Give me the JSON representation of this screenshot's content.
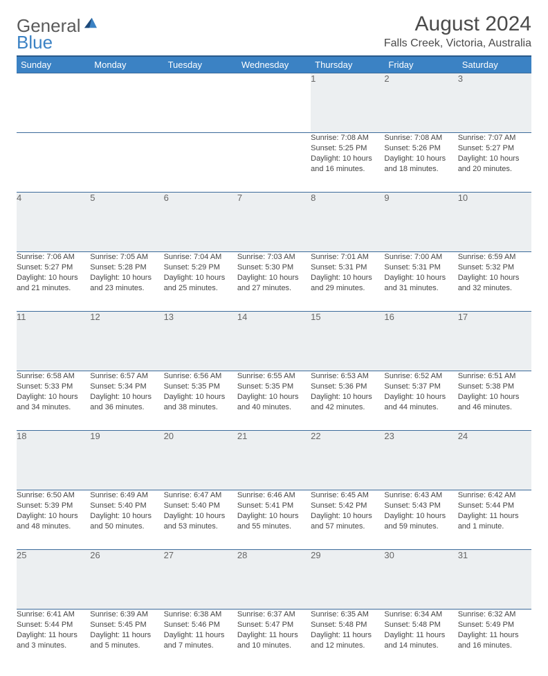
{
  "logo": {
    "general": "General",
    "blue": "Blue"
  },
  "title": {
    "month": "August 2024",
    "location": "Falls Creek, Victoria, Australia"
  },
  "colors": {
    "header_bg": "#3b82c4",
    "header_text": "#ffffff",
    "header_top_border": "#2a5a8a",
    "cell_border": "#3b6a9a",
    "daynum_bg": "#eceff1",
    "daynum_text": "#666666",
    "body_text": "#444444",
    "page_bg": "#ffffff",
    "title_text": "#4a4a4a",
    "logo_gray": "#5a5a5a",
    "logo_blue": "#3b82c4"
  },
  "columns": [
    "Sunday",
    "Monday",
    "Tuesday",
    "Wednesday",
    "Thursday",
    "Friday",
    "Saturday"
  ],
  "weeks": [
    {
      "nums": [
        "",
        "",
        "",
        "",
        "1",
        "2",
        "3"
      ],
      "cells": [
        null,
        null,
        null,
        null,
        {
          "sunrise": "Sunrise: 7:08 AM",
          "sunset": "Sunset: 5:25 PM",
          "daylight1": "Daylight: 10 hours",
          "daylight2": "and 16 minutes."
        },
        {
          "sunrise": "Sunrise: 7:08 AM",
          "sunset": "Sunset: 5:26 PM",
          "daylight1": "Daylight: 10 hours",
          "daylight2": "and 18 minutes."
        },
        {
          "sunrise": "Sunrise: 7:07 AM",
          "sunset": "Sunset: 5:27 PM",
          "daylight1": "Daylight: 10 hours",
          "daylight2": "and 20 minutes."
        }
      ]
    },
    {
      "nums": [
        "4",
        "5",
        "6",
        "7",
        "8",
        "9",
        "10"
      ],
      "cells": [
        {
          "sunrise": "Sunrise: 7:06 AM",
          "sunset": "Sunset: 5:27 PM",
          "daylight1": "Daylight: 10 hours",
          "daylight2": "and 21 minutes."
        },
        {
          "sunrise": "Sunrise: 7:05 AM",
          "sunset": "Sunset: 5:28 PM",
          "daylight1": "Daylight: 10 hours",
          "daylight2": "and 23 minutes."
        },
        {
          "sunrise": "Sunrise: 7:04 AM",
          "sunset": "Sunset: 5:29 PM",
          "daylight1": "Daylight: 10 hours",
          "daylight2": "and 25 minutes."
        },
        {
          "sunrise": "Sunrise: 7:03 AM",
          "sunset": "Sunset: 5:30 PM",
          "daylight1": "Daylight: 10 hours",
          "daylight2": "and 27 minutes."
        },
        {
          "sunrise": "Sunrise: 7:01 AM",
          "sunset": "Sunset: 5:31 PM",
          "daylight1": "Daylight: 10 hours",
          "daylight2": "and 29 minutes."
        },
        {
          "sunrise": "Sunrise: 7:00 AM",
          "sunset": "Sunset: 5:31 PM",
          "daylight1": "Daylight: 10 hours",
          "daylight2": "and 31 minutes."
        },
        {
          "sunrise": "Sunrise: 6:59 AM",
          "sunset": "Sunset: 5:32 PM",
          "daylight1": "Daylight: 10 hours",
          "daylight2": "and 32 minutes."
        }
      ]
    },
    {
      "nums": [
        "11",
        "12",
        "13",
        "14",
        "15",
        "16",
        "17"
      ],
      "cells": [
        {
          "sunrise": "Sunrise: 6:58 AM",
          "sunset": "Sunset: 5:33 PM",
          "daylight1": "Daylight: 10 hours",
          "daylight2": "and 34 minutes."
        },
        {
          "sunrise": "Sunrise: 6:57 AM",
          "sunset": "Sunset: 5:34 PM",
          "daylight1": "Daylight: 10 hours",
          "daylight2": "and 36 minutes."
        },
        {
          "sunrise": "Sunrise: 6:56 AM",
          "sunset": "Sunset: 5:35 PM",
          "daylight1": "Daylight: 10 hours",
          "daylight2": "and 38 minutes."
        },
        {
          "sunrise": "Sunrise: 6:55 AM",
          "sunset": "Sunset: 5:35 PM",
          "daylight1": "Daylight: 10 hours",
          "daylight2": "and 40 minutes."
        },
        {
          "sunrise": "Sunrise: 6:53 AM",
          "sunset": "Sunset: 5:36 PM",
          "daylight1": "Daylight: 10 hours",
          "daylight2": "and 42 minutes."
        },
        {
          "sunrise": "Sunrise: 6:52 AM",
          "sunset": "Sunset: 5:37 PM",
          "daylight1": "Daylight: 10 hours",
          "daylight2": "and 44 minutes."
        },
        {
          "sunrise": "Sunrise: 6:51 AM",
          "sunset": "Sunset: 5:38 PM",
          "daylight1": "Daylight: 10 hours",
          "daylight2": "and 46 minutes."
        }
      ]
    },
    {
      "nums": [
        "18",
        "19",
        "20",
        "21",
        "22",
        "23",
        "24"
      ],
      "cells": [
        {
          "sunrise": "Sunrise: 6:50 AM",
          "sunset": "Sunset: 5:39 PM",
          "daylight1": "Daylight: 10 hours",
          "daylight2": "and 48 minutes."
        },
        {
          "sunrise": "Sunrise: 6:49 AM",
          "sunset": "Sunset: 5:40 PM",
          "daylight1": "Daylight: 10 hours",
          "daylight2": "and 50 minutes."
        },
        {
          "sunrise": "Sunrise: 6:47 AM",
          "sunset": "Sunset: 5:40 PM",
          "daylight1": "Daylight: 10 hours",
          "daylight2": "and 53 minutes."
        },
        {
          "sunrise": "Sunrise: 6:46 AM",
          "sunset": "Sunset: 5:41 PM",
          "daylight1": "Daylight: 10 hours",
          "daylight2": "and 55 minutes."
        },
        {
          "sunrise": "Sunrise: 6:45 AM",
          "sunset": "Sunset: 5:42 PM",
          "daylight1": "Daylight: 10 hours",
          "daylight2": "and 57 minutes."
        },
        {
          "sunrise": "Sunrise: 6:43 AM",
          "sunset": "Sunset: 5:43 PM",
          "daylight1": "Daylight: 10 hours",
          "daylight2": "and 59 minutes."
        },
        {
          "sunrise": "Sunrise: 6:42 AM",
          "sunset": "Sunset: 5:44 PM",
          "daylight1": "Daylight: 11 hours",
          "daylight2": "and 1 minute."
        }
      ]
    },
    {
      "nums": [
        "25",
        "26",
        "27",
        "28",
        "29",
        "30",
        "31"
      ],
      "cells": [
        {
          "sunrise": "Sunrise: 6:41 AM",
          "sunset": "Sunset: 5:44 PM",
          "daylight1": "Daylight: 11 hours",
          "daylight2": "and 3 minutes."
        },
        {
          "sunrise": "Sunrise: 6:39 AM",
          "sunset": "Sunset: 5:45 PM",
          "daylight1": "Daylight: 11 hours",
          "daylight2": "and 5 minutes."
        },
        {
          "sunrise": "Sunrise: 6:38 AM",
          "sunset": "Sunset: 5:46 PM",
          "daylight1": "Daylight: 11 hours",
          "daylight2": "and 7 minutes."
        },
        {
          "sunrise": "Sunrise: 6:37 AM",
          "sunset": "Sunset: 5:47 PM",
          "daylight1": "Daylight: 11 hours",
          "daylight2": "and 10 minutes."
        },
        {
          "sunrise": "Sunrise: 6:35 AM",
          "sunset": "Sunset: 5:48 PM",
          "daylight1": "Daylight: 11 hours",
          "daylight2": "and 12 minutes."
        },
        {
          "sunrise": "Sunrise: 6:34 AM",
          "sunset": "Sunset: 5:48 PM",
          "daylight1": "Daylight: 11 hours",
          "daylight2": "and 14 minutes."
        },
        {
          "sunrise": "Sunrise: 6:32 AM",
          "sunset": "Sunset: 5:49 PM",
          "daylight1": "Daylight: 11 hours",
          "daylight2": "and 16 minutes."
        }
      ]
    }
  ]
}
